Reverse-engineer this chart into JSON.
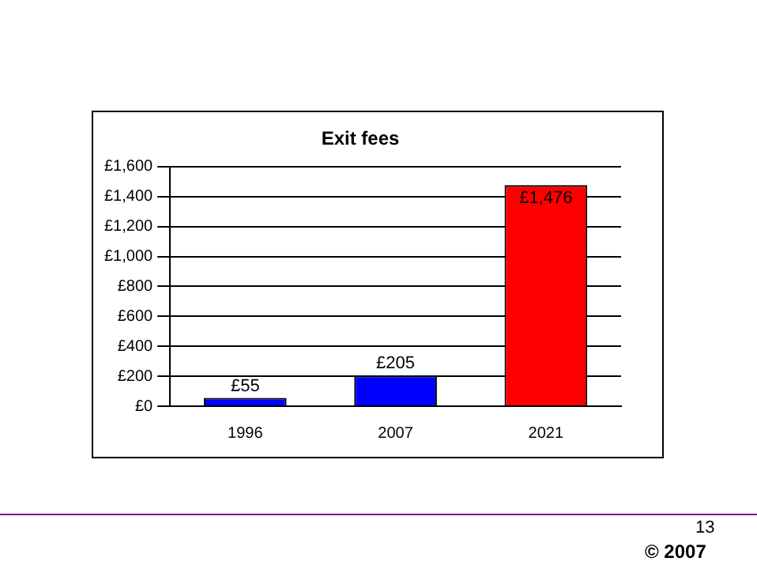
{
  "chart_data": {
    "type": "bar",
    "title": "Exit fees",
    "categories": [
      "1996",
      "2007",
      "2021"
    ],
    "values": [
      55,
      205,
      1476
    ],
    "colors": [
      "#0000ff",
      "#0000ff",
      "#ff0000"
    ],
    "value_labels": [
      "£55",
      "£205",
      "£1,476"
    ],
    "ylim": [
      0,
      1600
    ],
    "yticks": [
      {
        "value": 0,
        "label": "£0"
      },
      {
        "value": 200,
        "label": "£200"
      },
      {
        "value": 400,
        "label": "£400"
      },
      {
        "value": 600,
        "label": "£600"
      },
      {
        "value": 800,
        "label": "£800"
      },
      {
        "value": 1000,
        "label": "£1,000"
      },
      {
        "value": 1200,
        "label": "£1,200"
      },
      {
        "value": 1400,
        "label": "£1,400"
      },
      {
        "value": 1600,
        "label": "£1,600"
      }
    ],
    "grid": "y",
    "legend": false,
    "annotations": [
      "13",
      "© 2007"
    ]
  }
}
